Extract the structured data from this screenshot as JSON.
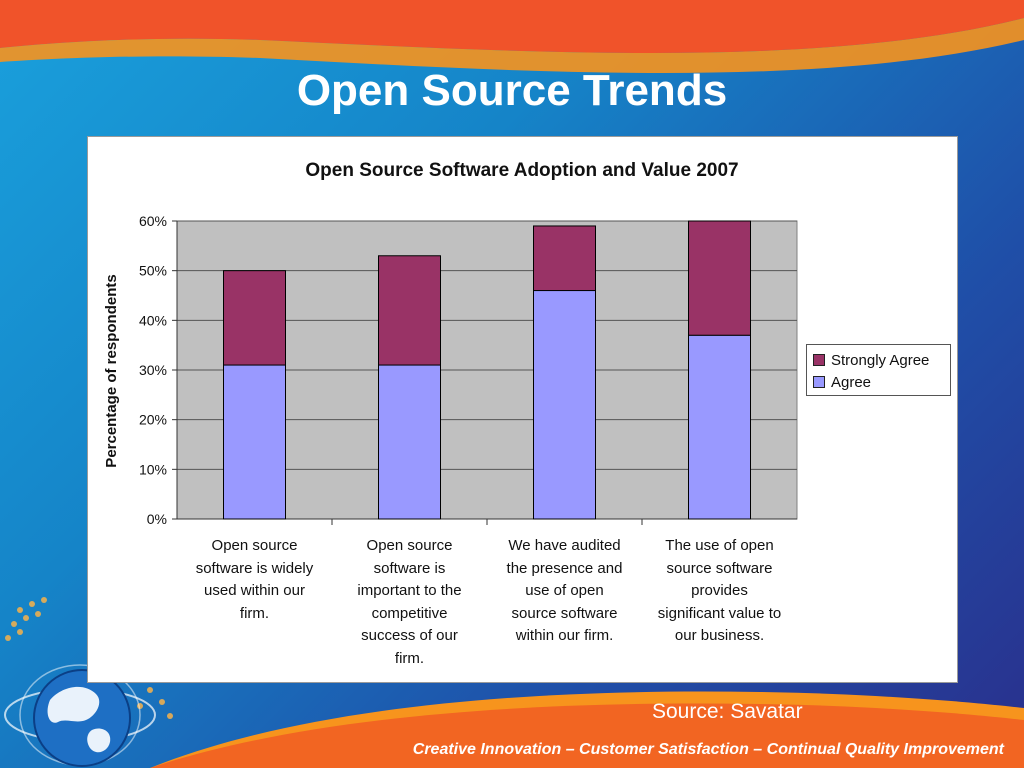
{
  "slide": {
    "title": "Open Source Trends",
    "source": "Source: Savatar",
    "footer": "Creative Innovation – Customer Satisfaction – Continual Quality Improvement"
  },
  "colors": {
    "strongly_agree": "#993366",
    "agree": "#9999ff",
    "plot_bg": "#c0c0c0",
    "top_band": "#f26522",
    "bottom_band": "#f7941d"
  },
  "chart_data": {
    "type": "bar",
    "stacked": true,
    "title": "Open Source Software Adoption and Value 2007",
    "xlabel": "",
    "ylabel": "Percentage of respondents",
    "ylim": [
      0,
      60
    ],
    "yticks": [
      "0%",
      "10%",
      "20%",
      "30%",
      "40%",
      "50%",
      "60%"
    ],
    "grid": true,
    "legend_position": "right",
    "categories": [
      "Open source software is widely used within our firm.",
      "Open source software is important to the competitive success of our firm.",
      "We have audited the presence and use of open source software within our firm.",
      "The use of open source software provides significant value to our business."
    ],
    "category_lines": [
      [
        "Open source",
        "software is widely",
        "used within our",
        "firm."
      ],
      [
        "Open source",
        "software is",
        "important to the",
        "competitive",
        "success of our",
        "firm."
      ],
      [
        "We have audited",
        "the presence and",
        "use of open",
        "source software",
        "within our firm."
      ],
      [
        "The use of open",
        "source software",
        "provides",
        "significant value to",
        "our business."
      ]
    ],
    "series": [
      {
        "name": "Agree",
        "values": [
          31,
          31,
          46,
          37
        ]
      },
      {
        "name": "Strongly Agree",
        "values": [
          19,
          22,
          13,
          23
        ]
      }
    ],
    "legend": [
      "Strongly Agree",
      "Agree"
    ]
  }
}
